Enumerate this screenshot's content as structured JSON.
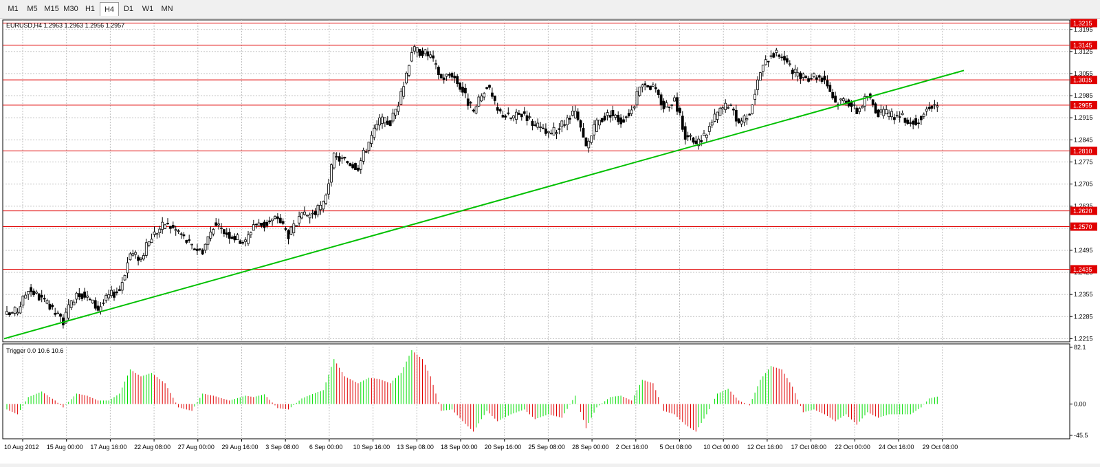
{
  "timeframes": [
    {
      "label": "M1",
      "active": false
    },
    {
      "label": "M5",
      "active": false
    },
    {
      "label": "M15",
      "active": false
    },
    {
      "label": "M30",
      "active": false
    },
    {
      "label": "H1",
      "active": false
    },
    {
      "label": "H4",
      "active": true
    },
    {
      "label": "D1",
      "active": false
    },
    {
      "label": "W1",
      "active": false
    },
    {
      "label": "MN",
      "active": false
    }
  ],
  "colors": {
    "bull": "#ffffff",
    "bear": "#000000",
    "grid": "#c0c0c0",
    "level": "#e00000",
    "trend": "#00c000",
    "hist_up": "#00dd00",
    "hist_down": "#e00000"
  },
  "chart_data": [
    {
      "type": "candlestick",
      "title": "EURUSD,H4  1.2963 1.2963 1.2956 1.2957",
      "symbol": "EURUSD",
      "timeframe": "H4",
      "ohlc_current": [
        1.2963,
        1.2963,
        1.2956,
        1.2957
      ],
      "ylim": [
        1.2205,
        1.3225
      ],
      "y_ticks": [
        "1.3195",
        "1.3125",
        "1.3055",
        "1.2985",
        "1.2915",
        "1.2845",
        "1.2775",
        "1.2705",
        "1.2635",
        "1.2565",
        "1.2495",
        "1.2425",
        "1.2355",
        "1.2285",
        "1.2215"
      ],
      "x_ticks": [
        "10 Aug 2012",
        "15 Aug 00:00",
        "17 Aug 16:00",
        "22 Aug 08:00",
        "27 Aug 00:00",
        "29 Aug 16:00",
        "3 Sep 08:00",
        "6 Sep 00:00",
        "10 Sep 16:00",
        "13 Sep 08:00",
        "18 Sep 00:00",
        "20 Sep 16:00",
        "25 Sep 08:00",
        "28 Sep 00:00",
        "2 Oct 16:00",
        "5 Oct 08:00",
        "10 Oct 00:00",
        "12 Oct 16:00",
        "17 Oct 08:00",
        "22 Oct 00:00",
        "24 Oct 16:00",
        "29 Oct 08:00"
      ],
      "grid": true,
      "horizontal_levels": [
        "1.3215",
        "1.3145",
        "1.3035",
        "1.2955",
        "1.2810",
        "1.2620",
        "1.2570",
        "1.2435"
      ],
      "trendline": {
        "from": {
          "index": 0,
          "price": 1.2215
        },
        "to": {
          "index": 229,
          "price": 1.3065
        }
      },
      "close_path": [
        {
          "i": 0,
          "c": 1.229
        },
        {
          "i": 4,
          "c": 1.2305
        },
        {
          "i": 8,
          "c": 1.2375
        },
        {
          "i": 13,
          "c": 1.234
        },
        {
          "i": 18,
          "c": 1.2295
        },
        {
          "i": 21,
          "c": 1.227
        },
        {
          "i": 26,
          "c": 1.2365
        },
        {
          "i": 30,
          "c": 1.2345
        },
        {
          "i": 34,
          "c": 1.231
        },
        {
          "i": 38,
          "c": 1.235
        },
        {
          "i": 42,
          "c": 1.237
        },
        {
          "i": 46,
          "c": 1.2485
        },
        {
          "i": 50,
          "c": 1.247
        },
        {
          "i": 54,
          "c": 1.254
        },
        {
          "i": 59,
          "c": 1.258
        },
        {
          "i": 64,
          "c": 1.2555
        },
        {
          "i": 69,
          "c": 1.2505
        },
        {
          "i": 73,
          "c": 1.2495
        },
        {
          "i": 77,
          "c": 1.2575
        },
        {
          "i": 83,
          "c": 1.2545
        },
        {
          "i": 89,
          "c": 1.252
        },
        {
          "i": 92,
          "c": 1.258
        },
        {
          "i": 96,
          "c": 1.2575
        },
        {
          "i": 101,
          "c": 1.26
        },
        {
          "i": 105,
          "c": 1.2545
        },
        {
          "i": 110,
          "c": 1.26
        },
        {
          "i": 115,
          "c": 1.2615
        },
        {
          "i": 118,
          "c": 1.264
        },
        {
          "i": 122,
          "c": 1.279
        },
        {
          "i": 126,
          "c": 1.278
        },
        {
          "i": 131,
          "c": 1.276
        },
        {
          "i": 135,
          "c": 1.284
        },
        {
          "i": 139,
          "c": 1.2905
        },
        {
          "i": 143,
          "c": 1.29
        },
        {
          "i": 147,
          "c": 1.2985
        },
        {
          "i": 151,
          "c": 1.313
        },
        {
          "i": 155,
          "c": 1.3125
        },
        {
          "i": 158,
          "c": 1.311
        },
        {
          "i": 162,
          "c": 1.304
        },
        {
          "i": 166,
          "c": 1.3055
        },
        {
          "i": 170,
          "c": 1.3
        },
        {
          "i": 174,
          "c": 1.293
        },
        {
          "i": 179,
          "c": 1.302
        },
        {
          "i": 183,
          "c": 1.2935
        },
        {
          "i": 188,
          "c": 1.2915
        },
        {
          "i": 193,
          "c": 1.293
        },
        {
          "i": 197,
          "c": 1.289
        },
        {
          "i": 202,
          "c": 1.286
        },
        {
          "i": 207,
          "c": 1.289
        },
        {
          "i": 212,
          "c": 1.293
        },
        {
          "i": 216,
          "c": 1.282
        },
        {
          "i": 220,
          "c": 1.29
        },
        {
          "i": 225,
          "c": 1.293
        },
        {
          "i": 229,
          "c": 1.2905
        },
        {
          "i": 233,
          "c": 1.294
        },
        {
          "i": 237,
          "c": 1.303
        },
        {
          "i": 241,
          "c": 1.301
        },
        {
          "i": 245,
          "c": 1.295
        },
        {
          "i": 249,
          "c": 1.2975
        },
        {
          "i": 253,
          "c": 1.286
        },
        {
          "i": 257,
          "c": 1.283
        },
        {
          "i": 261,
          "c": 1.287
        },
        {
          "i": 265,
          "c": 1.293
        },
        {
          "i": 269,
          "c": 1.296
        },
        {
          "i": 273,
          "c": 1.29
        },
        {
          "i": 277,
          "c": 1.2935
        },
        {
          "i": 281,
          "c": 1.306
        },
        {
          "i": 285,
          "c": 1.312
        },
        {
          "i": 289,
          "c": 1.3115
        },
        {
          "i": 293,
          "c": 1.306
        },
        {
          "i": 297,
          "c": 1.304
        },
        {
          "i": 301,
          "c": 1.305
        },
        {
          "i": 305,
          "c": 1.304
        },
        {
          "i": 309,
          "c": 1.2965
        },
        {
          "i": 313,
          "c": 1.2975
        },
        {
          "i": 317,
          "c": 1.2935
        },
        {
          "i": 321,
          "c": 1.2985
        },
        {
          "i": 325,
          "c": 1.293
        },
        {
          "i": 329,
          "c": 1.2925
        },
        {
          "i": 333,
          "c": 1.292
        },
        {
          "i": 337,
          "c": 1.29
        },
        {
          "i": 341,
          "c": 1.2915
        },
        {
          "i": 344,
          "c": 1.2955
        },
        {
          "i": 347,
          "c": 1.2957
        }
      ]
    },
    {
      "type": "histogram",
      "title": "Trigger 0.0 10.6 10.6",
      "name": "Trigger",
      "ylim": [
        -45.5,
        82.1
      ],
      "y_ticks": [
        "82.1",
        "0.00",
        "-45.5"
      ],
      "value_path": [
        {
          "i": 0,
          "v": -8
        },
        {
          "i": 4,
          "v": -15
        },
        {
          "i": 8,
          "v": 10
        },
        {
          "i": 13,
          "v": 18
        },
        {
          "i": 18,
          "v": 5
        },
        {
          "i": 21,
          "v": -5
        },
        {
          "i": 26,
          "v": 15
        },
        {
          "i": 30,
          "v": 12
        },
        {
          "i": 34,
          "v": 5
        },
        {
          "i": 38,
          "v": 5
        },
        {
          "i": 42,
          "v": 15
        },
        {
          "i": 46,
          "v": 50
        },
        {
          "i": 50,
          "v": 40
        },
        {
          "i": 54,
          "v": 45
        },
        {
          "i": 59,
          "v": 30
        },
        {
          "i": 64,
          "v": -5
        },
        {
          "i": 69,
          "v": -10
        },
        {
          "i": 73,
          "v": 15
        },
        {
          "i": 77,
          "v": 12
        },
        {
          "i": 83,
          "v": 5
        },
        {
          "i": 89,
          "v": 12
        },
        {
          "i": 92,
          "v": 10
        },
        {
          "i": 96,
          "v": 14
        },
        {
          "i": 101,
          "v": -6
        },
        {
          "i": 105,
          "v": -8
        },
        {
          "i": 110,
          "v": 8
        },
        {
          "i": 115,
          "v": 16
        },
        {
          "i": 118,
          "v": 20
        },
        {
          "i": 122,
          "v": 65
        },
        {
          "i": 126,
          "v": 40
        },
        {
          "i": 131,
          "v": 30
        },
        {
          "i": 135,
          "v": 38
        },
        {
          "i": 139,
          "v": 36
        },
        {
          "i": 143,
          "v": 30
        },
        {
          "i": 147,
          "v": 45
        },
        {
          "i": 151,
          "v": 78
        },
        {
          "i": 155,
          "v": 65
        },
        {
          "i": 158,
          "v": 40
        },
        {
          "i": 162,
          "v": -10
        },
        {
          "i": 166,
          "v": -8
        },
        {
          "i": 170,
          "v": -25
        },
        {
          "i": 174,
          "v": -40
        },
        {
          "i": 179,
          "v": -10
        },
        {
          "i": 183,
          "v": -25
        },
        {
          "i": 188,
          "v": -15
        },
        {
          "i": 193,
          "v": -8
        },
        {
          "i": 197,
          "v": -22
        },
        {
          "i": 202,
          "v": -15
        },
        {
          "i": 207,
          "v": -20
        },
        {
          "i": 212,
          "v": 12
        },
        {
          "i": 216,
          "v": -35
        },
        {
          "i": 220,
          "v": -5
        },
        {
          "i": 225,
          "v": 10
        },
        {
          "i": 229,
          "v": 12
        },
        {
          "i": 233,
          "v": 5
        },
        {
          "i": 237,
          "v": 35
        },
        {
          "i": 241,
          "v": 30
        },
        {
          "i": 245,
          "v": -10
        },
        {
          "i": 249,
          "v": -15
        },
        {
          "i": 253,
          "v": -30
        },
        {
          "i": 257,
          "v": -40
        },
        {
          "i": 261,
          "v": -15
        },
        {
          "i": 265,
          "v": 15
        },
        {
          "i": 269,
          "v": 22
        },
        {
          "i": 273,
          "v": 5
        },
        {
          "i": 277,
          "v": -2
        },
        {
          "i": 281,
          "v": 35
        },
        {
          "i": 285,
          "v": 55
        },
        {
          "i": 289,
          "v": 50
        },
        {
          "i": 293,
          "v": 25
        },
        {
          "i": 297,
          "v": -12
        },
        {
          "i": 301,
          "v": -8
        },
        {
          "i": 305,
          "v": -15
        },
        {
          "i": 309,
          "v": -25
        },
        {
          "i": 313,
          "v": -15
        },
        {
          "i": 317,
          "v": -30
        },
        {
          "i": 321,
          "v": -12
        },
        {
          "i": 325,
          "v": -20
        },
        {
          "i": 329,
          "v": -15
        },
        {
          "i": 333,
          "v": -15
        },
        {
          "i": 337,
          "v": -15
        },
        {
          "i": 341,
          "v": -5
        },
        {
          "i": 344,
          "v": 8
        },
        {
          "i": 347,
          "v": 10.6
        }
      ]
    }
  ]
}
